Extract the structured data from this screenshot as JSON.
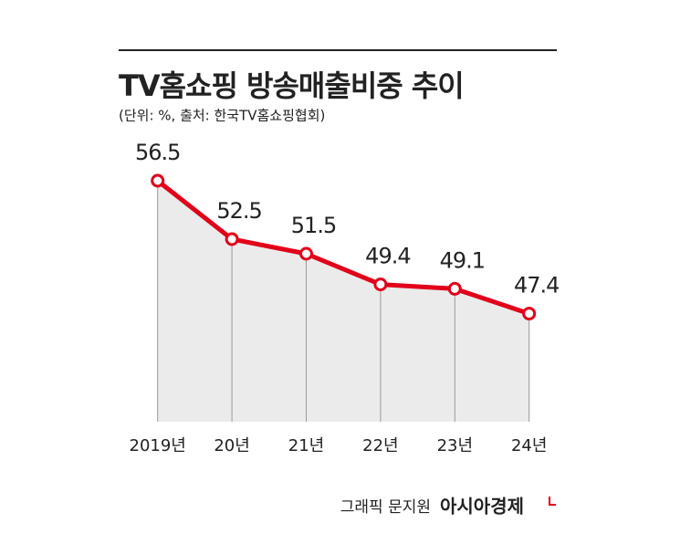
{
  "title": "TV홈쇼핑 방송매출비중 추이",
  "subtitle": "(단위: %, 출처: 한국TV홈쇼핑협회)",
  "chart_data": {
    "type": "line",
    "categories": [
      "2019년",
      "20년",
      "21년",
      "22년",
      "23년",
      "24년"
    ],
    "values": [
      56.5,
      52.5,
      51.5,
      49.4,
      49.1,
      47.4
    ],
    "color": "#e2001a",
    "area_color": "#ebebeb",
    "ylim": [
      40,
      58
    ]
  },
  "credit": "그래픽 문지원",
  "brand": "아시아경제"
}
